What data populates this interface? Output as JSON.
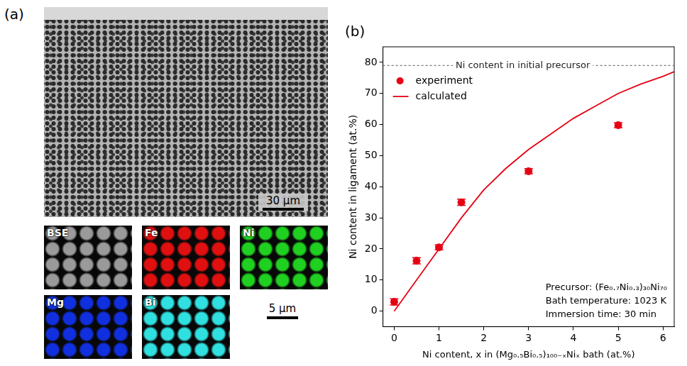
{
  "chart_data": {
    "type": "scatter",
    "panel_label": "(b)",
    "x_label": "Ni content, x in (Mg₀.₅Bi₀.₅)₁₀₀₋ₓNiₓ bath (at.%)",
    "y_label": "Ni content in ligament (at.%)",
    "xlim": [
      -0.25,
      6.25
    ],
    "xticks": [
      0,
      1,
      2,
      3,
      4,
      5,
      6
    ],
    "ylim": [
      -5,
      85
    ],
    "yticks": [
      0,
      10,
      20,
      30,
      40,
      50,
      60,
      70,
      80
    ],
    "grid": false,
    "legend": "upper left",
    "reference_line": {
      "value": 79,
      "label": "Ni content in initial precursor",
      "color": "#777777",
      "line_style": "dashed"
    },
    "annotations": [
      "Precursor: (Fe₀.₇Ni₀.₃)₃₀Ni₇₀",
      "Bath temperature: 1023 K",
      "Immersion time: 30 min"
    ],
    "series": [
      {
        "name": "experiment",
        "type": "scatter",
        "color": "#e60012",
        "marker": "circle",
        "x": [
          0,
          0.5,
          1,
          1.5,
          3,
          5
        ],
        "values": [
          3,
          16.2,
          20.5,
          35,
          45,
          59.8
        ],
        "errors": [
          1,
          1,
          0.8,
          1,
          0.8,
          0.8
        ]
      },
      {
        "name": "calculated",
        "type": "line",
        "color": "#e60012",
        "line_style": "solid",
        "x": [
          0,
          0.25,
          0.5,
          1,
          1.5,
          2,
          2.5,
          3,
          3.5,
          4,
          4.5,
          5,
          5.5,
          6,
          6.25
        ],
        "values": [
          0,
          5,
          10,
          20,
          30,
          39,
          46,
          52,
          57,
          62,
          66,
          70,
          73,
          75.5,
          77
        ]
      }
    ]
  },
  "micrograph": {
    "panel_label": "(a)",
    "scale_bar": "30 µm",
    "map_scale_bar": "5 µm",
    "maps": [
      {
        "label": "BSE",
        "color": "#9a9a9a"
      },
      {
        "label": "Fe",
        "color": "#e01010"
      },
      {
        "label": "Ni",
        "color": "#20d020"
      },
      {
        "label": "Mg",
        "color": "#1030e0"
      },
      {
        "label": "Bi",
        "color": "#30e0e0"
      }
    ]
  }
}
